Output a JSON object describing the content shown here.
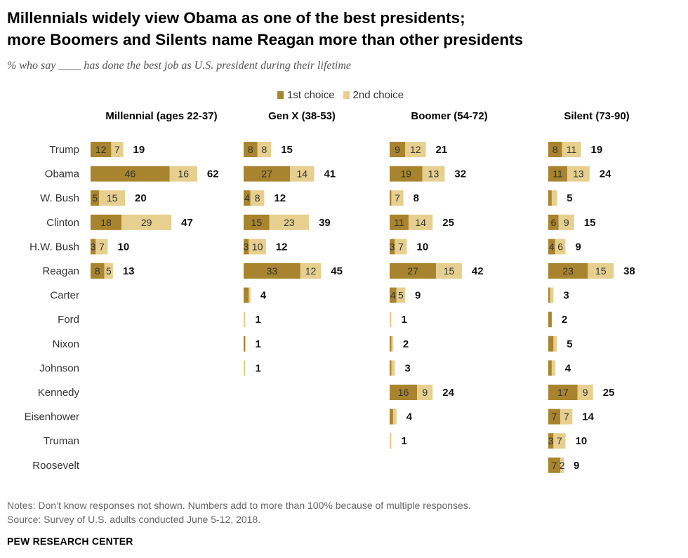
{
  "title_line1": "Millennials widely view Obama as one of the best presidents;",
  "title_line2": "more Boomers and Silents name Reagan more than other presidents",
  "subtitle": "% who say ____ has done the best job as U.S. president during their lifetime",
  "notes": "Notes: Don’t know responses not shown. Numbers add to more than 100% because of multiple responses.",
  "source": "Source: Survey of U.S. adults conducted June 5-12, 2018.",
  "org": "PEW RESEARCH CENTER",
  "colors": {
    "first": "#a8842e",
    "second": "#e6cf8f"
  },
  "chart_data": {
    "type": "bar",
    "orientation": "horizontal-stacked",
    "categories": [
      "Trump",
      "Obama",
      "W. Bush",
      "Clinton",
      "H.W. Bush",
      "Reagan",
      "Carter",
      "Ford",
      "Nixon",
      "Johnson",
      "Kennedy",
      "Eisenhower",
      "Truman",
      "Roosevelt"
    ],
    "legend": [
      "1st choice",
      "2nd choice"
    ],
    "legend_position": "top",
    "grid": false,
    "panels": [
      {
        "title": "Millennial (ages 22-37)",
        "rows": [
          {
            "first": 12,
            "second": 7,
            "total": 19
          },
          {
            "first": 46,
            "second": 16,
            "total": 62
          },
          {
            "first": 5,
            "second": 15,
            "total": 20
          },
          {
            "first": 18,
            "second": 29,
            "total": 47
          },
          {
            "first": 3,
            "second": 7,
            "total": 10
          },
          {
            "first": 8,
            "second": 5,
            "total": 13
          },
          null,
          null,
          null,
          null,
          null,
          null,
          null,
          null
        ]
      },
      {
        "title": "Gen X (38-53)",
        "rows": [
          {
            "first": 8,
            "second": 8,
            "total": 15
          },
          {
            "first": 27,
            "second": 14,
            "total": 41
          },
          {
            "first": 4,
            "second": 8,
            "total": 12
          },
          {
            "first": 15,
            "second": 23,
            "total": 39
          },
          {
            "first": 3,
            "second": 10,
            "total": 12
          },
          {
            "first": 33,
            "second": 12,
            "total": 45
          },
          {
            "first": 3,
            "second": 1,
            "total": 4
          },
          {
            "first": 0,
            "second": 1,
            "total": 1
          },
          {
            "first": 1,
            "second": 0,
            "total": 1
          },
          {
            "first": 0,
            "second": 1,
            "total": 1
          },
          null,
          null,
          null,
          null
        ]
      },
      {
        "title": "Boomer (54-72)",
        "rows": [
          {
            "first": 9,
            "second": 12,
            "total": 21
          },
          {
            "first": 19,
            "second": 13,
            "total": 32
          },
          {
            "first": 1,
            "second": 7,
            "total": 8
          },
          {
            "first": 11,
            "second": 14,
            "total": 25
          },
          {
            "first": 3,
            "second": 7,
            "total": 10
          },
          {
            "first": 27,
            "second": 15,
            "total": 42
          },
          {
            "first": 4,
            "second": 5,
            "total": 9
          },
          {
            "first": 0,
            "second": 1,
            "total": 1
          },
          {
            "first": 1,
            "second": 1,
            "total": 2
          },
          {
            "first": 1,
            "second": 2,
            "total": 3
          },
          {
            "first": 16,
            "second": 9,
            "total": 24
          },
          {
            "first": 2,
            "second": 2,
            "total": 4
          },
          {
            "first": 0,
            "second": 1,
            "total": 1
          },
          null
        ]
      },
      {
        "title": "Silent (73-90)",
        "rows": [
          {
            "first": 8,
            "second": 11,
            "total": 19
          },
          {
            "first": 11,
            "second": 13,
            "total": 24
          },
          {
            "first": 2,
            "second": 3,
            "total": 5
          },
          {
            "first": 6,
            "second": 9,
            "total": 15
          },
          {
            "first": 4,
            "second": 6,
            "total": 9
          },
          {
            "first": 23,
            "second": 15,
            "total": 38
          },
          {
            "first": 1,
            "second": 2,
            "total": 3
          },
          {
            "first": 2,
            "second": 0,
            "total": 2
          },
          {
            "first": 3,
            "second": 2,
            "total": 5
          },
          {
            "first": 2,
            "second": 2,
            "total": 4
          },
          {
            "first": 17,
            "second": 9,
            "total": 25
          },
          {
            "first": 7,
            "second": 7,
            "total": 14
          },
          {
            "first": 3,
            "second": 7,
            "total": 10
          },
          {
            "first": 7,
            "second": 2,
            "total": 9
          }
        ]
      }
    ]
  }
}
